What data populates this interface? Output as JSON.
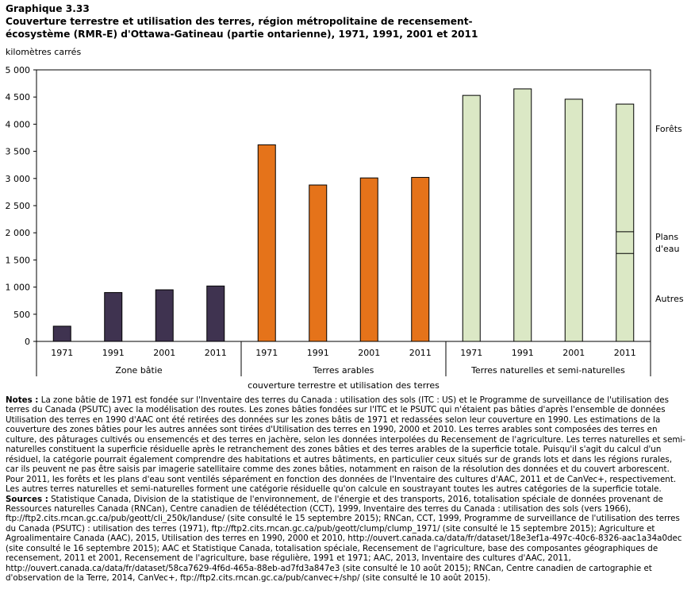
{
  "header": {
    "label": "Graphique 3.33",
    "title_line1": "Couverture terrestre et utilisation des terres, région métropolitaine de recensement-",
    "title_line2": "écosystème (RMR-E) d'Ottawa-Gatineau (partie ontarienne), 1971, 1991, 2001 et 2011"
  },
  "chart_data": {
    "type": "bar",
    "title": "Couverture terrestre et utilisation des terres, région métropolitaine de recensement-écosystème (RMR-E) d'Ottawa-Gatineau (partie ontarienne), 1971, 1991, 2001 et 2011",
    "ylabel": "kilomètres carrés",
    "xlabel": "couverture terrestre et utilisation des terres",
    "ylim": [
      0,
      5000
    ],
    "yticks": [
      0,
      500,
      1000,
      1500,
      2000,
      2500,
      3000,
      3500,
      4000,
      4500,
      5000
    ],
    "ytick_labels": [
      "0",
      "500",
      "1 000",
      "1 500",
      "2 000",
      "2 500",
      "3 000",
      "3 500",
      "4 000",
      "4 500",
      "5 000"
    ],
    "groups": [
      {
        "name": "Zone bâtie",
        "color": "#3f3350",
        "categories": [
          "1971",
          "1991",
          "2001",
          "2011"
        ],
        "values": [
          280,
          900,
          950,
          1020
        ]
      },
      {
        "name": "Terres arables",
        "color": "#e5731a",
        "categories": [
          "1971",
          "1991",
          "2001",
          "2011"
        ],
        "values": [
          3620,
          2880,
          3010,
          3020
        ]
      },
      {
        "name": "Terres naturelles et semi-naturelles",
        "color": "#dbe8c5",
        "categories": [
          "1971",
          "1991",
          "2001",
          "2011"
        ],
        "values": [
          4530,
          4650,
          4460,
          4370
        ]
      }
    ],
    "stacked_2011_natural": {
      "autres": 1620,
      "plans_d_eau": 400,
      "forets": 2350
    },
    "annotations": [
      "Forêts",
      "Plans",
      "d'eau",
      "Autres"
    ]
  },
  "notes": {
    "notes_label": "Notes :",
    "notes_text": "La zone bâtie de 1971 est fondée sur l'Inventaire des terres du Canada : utilisation des sols (ITC : US) et le Programme de surveillance de l'utilisation des terres du Canada (PSUTC) avec la modélisation des routes. Les zones bâties fondées sur l'ITC et le PSUTC qui n'étaient pas bâties d'après l'ensemble de données Utilisation des terres en 1990 d'AAC ont été retirées des données sur les zones bâtis de 1971 et redassées selon leur couverture en 1990. Les estimations de la couverture des zones bâties pour les autres années sont tirées d'Utilisation des terres en 1990, 2000 et 2010. Les terres arables sont composées des terres en culture, des pâturages cultivés ou ensemencés et des terres en jachère, selon les données interpolées du Recensement de l'agriculture. Les terres naturelles et semi-naturelles constituent la superficie résiduelle après le retranchement des zones bâties et des terres arables de la superficie totale. Puisqu'il s'agit du calcul d'un résiduel, la catégorie pourrait également comprendre des habitations et autres bâtiments, en particulier ceux situés sur de grands lots et dans les régions rurales, car ils peuvent ne pas être saisis par imagerie satellitaire comme des zones bâties, notamment en raison de la résolution des données et du couvert arborescent. Pour 2011, les forêts et les plans d'eau sont ventilés séparément en fonction des données de l'Inventaire des cultures d'AAC, 2011 et de CanVec+, respectivement. Les autres terres naturelles et semi-naturelles forment une catégorie résiduelle qu'on calcule en soustrayant toutes les autres catégories de la superficie totale.",
    "sources_label": "Sources :",
    "sources_text": "Statistique Canada, Division de la statistique de l'environnement, de l'énergie et des transports, 2016, totalisation spéciale de données provenant de Ressources naturelles Canada (RNCan), Centre canadien de télédétection (CCT), 1999, Inventaire des terres du Canada : utilisation des sols (vers 1966), ftp://ftp2.cits.rncan.gc.ca/pub/geott/cli_250k/landuse/ (site consulté le 15 septembre 2015); RNCan, CCT, 1999, Programme de surveillance de l'utilisation des terres du Canada (PSUTC) : utilisation des terres (1971), ftp://ftp2.cits.rncan.gc.ca/pub/geott/clump/clump_1971/ (site consulté le 15 septembre 2015); Agriculture et Agroalimentaire Canada (AAC), 2015, Utilisation des terres en 1990, 2000 et 2010, http://ouvert.canada.ca/data/fr/dataset/18e3ef1a-497c-40c6-8326-aac1a34a0dec (site consulté le 16 septembre 2015); AAC et Statistique Canada, totalisation spéciale, Recensement de l'agriculture, base des composantes géographiques de recensement, 2011 et 2001, Recensement de l'agriculture, base régulière, 1991 et 1971; AAC, 2013, Inventaire des cultures d'AAC, 2011, http://ouvert.canada.ca/data/fr/dataset/58ca7629-4f6d-465a-88eb-ad7fd3a847e3 (site consulté le 10 août 2015); RNCan, Centre canadien de cartographie et d'observation de la Terre, 2014, CanVec+, ftp://ftp2.cits.rncan.gc.ca/pub/canvec+/shp/ (site consulté le 10 août 2015)."
  }
}
